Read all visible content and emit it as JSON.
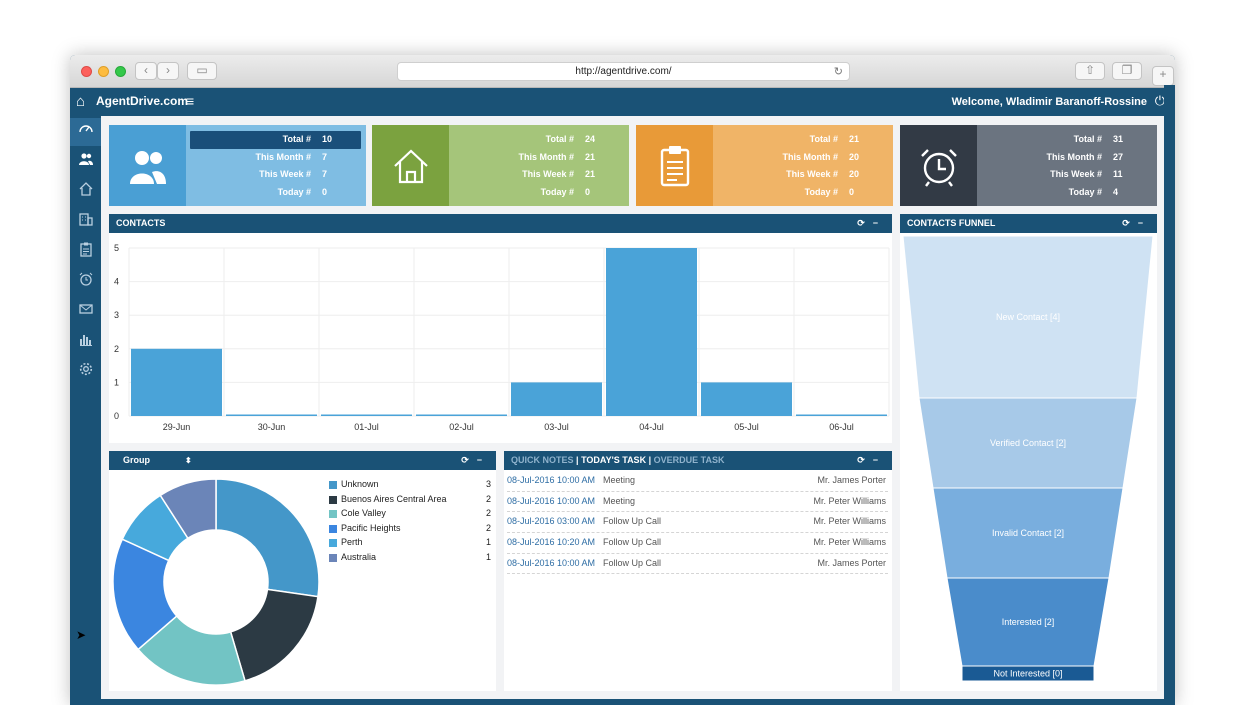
{
  "browser": {
    "url": "http://agentdrive.com/"
  },
  "header": {
    "brand": "AgentDrive.com",
    "welcome": "Welcome, Wladimir Baranoff-Rossine"
  },
  "sidebar": {
    "items": [
      {
        "name": "dashboard",
        "icon": "gauge-icon"
      },
      {
        "name": "contacts",
        "icon": "users-icon"
      },
      {
        "name": "properties",
        "icon": "home-icon"
      },
      {
        "name": "buildings",
        "icon": "building-icon"
      },
      {
        "name": "tasks",
        "icon": "clipboard-icon"
      },
      {
        "name": "reminders",
        "icon": "alarm-clock-icon"
      },
      {
        "name": "mail",
        "icon": "envelope-icon"
      },
      {
        "name": "reports",
        "icon": "bar-chart-icon"
      },
      {
        "name": "settings",
        "icon": "gear-icon"
      }
    ]
  },
  "stats": [
    {
      "icon": "users-icon",
      "color_icon": "#4a9fd4",
      "color_bg": "#7fbde3",
      "total_label": "Total #",
      "total": "10",
      "month_label": "This Month #",
      "month": "7",
      "week_label": "This Week #",
      "week": "7",
      "today_label": "Today #",
      "today": "0"
    },
    {
      "icon": "home-icon",
      "color_icon": "#7ba23f",
      "color_bg": "#a5c57a",
      "total_label": "Total #",
      "total": "24",
      "month_label": "This Month #",
      "month": "21",
      "week_label": "This Week #",
      "week": "21",
      "today_label": "Today #",
      "today": "0"
    },
    {
      "icon": "clipboard-icon",
      "color_icon": "#e89a38",
      "color_bg": "#f0b467",
      "total_label": "Total #",
      "total": "21",
      "month_label": "This Month #",
      "month": "20",
      "week_label": "This Week #",
      "week": "20",
      "today_label": "Today #",
      "today": "0"
    },
    {
      "icon": "alarm-clock-icon",
      "color_icon": "#323a45",
      "color_bg": "#6b7480",
      "total_label": "Total #",
      "total": "31",
      "month_label": "This Month #",
      "month": "27",
      "week_label": "This Week #",
      "week": "11",
      "today_label": "Today #",
      "today": "4"
    }
  ],
  "contacts_panel": {
    "title": "CONTACTS",
    "chart_data": {
      "type": "bar",
      "categories": [
        "29-Jun",
        "30-Jun",
        "01-Jul",
        "02-Jul",
        "03-Jul",
        "04-Jul",
        "05-Jul",
        "06-Jul"
      ],
      "values": [
        2,
        0,
        0,
        0,
        1,
        5,
        1,
        0
      ],
      "y_ticks": [
        "0",
        "1",
        "2",
        "3",
        "4",
        "5"
      ],
      "ylim": [
        0,
        5
      ],
      "color": "#4aa3d8",
      "grid": true
    }
  },
  "funnel_panel": {
    "title": "CONTACTS FUNNEL",
    "chart_data": {
      "type": "funnel",
      "stages": [
        {
          "label": "New Contact [4]",
          "value": 4,
          "color": "#cfe2f3"
        },
        {
          "label": "Verified Contact [2]",
          "value": 2,
          "color": "#a7c9e8"
        },
        {
          "label": "Invalid Contact [2]",
          "value": 2,
          "color": "#79aede"
        },
        {
          "label": "Interested [2]",
          "value": 2,
          "color": "#4a8ccb"
        },
        {
          "label": "Not Interested [0]",
          "value": 0,
          "color": "#1a5a94"
        }
      ]
    }
  },
  "group_panel": {
    "title": "Group",
    "chart_data": {
      "type": "pie",
      "series": [
        {
          "name": "Unknown",
          "value": 3,
          "color": "#4497c9"
        },
        {
          "name": "Buenos Aires Central Area",
          "value": 2,
          "color": "#2c3a44"
        },
        {
          "name": "Cole Valley",
          "value": 2,
          "color": "#72c4c4"
        },
        {
          "name": "Pacific Heights",
          "value": 2,
          "color": "#3b86e0"
        },
        {
          "name": "Perth",
          "value": 1,
          "color": "#47a9dc"
        },
        {
          "name": "Australia",
          "value": 1,
          "color": "#6b85b8"
        }
      ]
    }
  },
  "tasks_panel": {
    "tabs": [
      "QUICK NOTES",
      "TODAY'S TASK",
      "OVERDUE TASK"
    ],
    "separator": "|",
    "rows": [
      {
        "datetime": "08-Jul-2016 10:00 AM",
        "type": "Meeting",
        "person": "Mr. James Porter"
      },
      {
        "datetime": "08-Jul-2016 10:00 AM",
        "type": "Meeting",
        "person": "Mr. Peter Williams"
      },
      {
        "datetime": "08-Jul-2016 03:00 AM",
        "type": "Follow Up Call",
        "person": "Mr. Peter Williams"
      },
      {
        "datetime": "08-Jul-2016 10:20 AM",
        "type": "Follow Up Call",
        "person": "Mr. Peter Williams"
      },
      {
        "datetime": "08-Jul-2016 10:00 AM",
        "type": "Follow Up Call",
        "person": "Mr. James Porter"
      }
    ]
  },
  "panel_controls": {
    "refresh": "⟳",
    "minimize": "−"
  },
  "group_sort_icon": "sort-icon"
}
